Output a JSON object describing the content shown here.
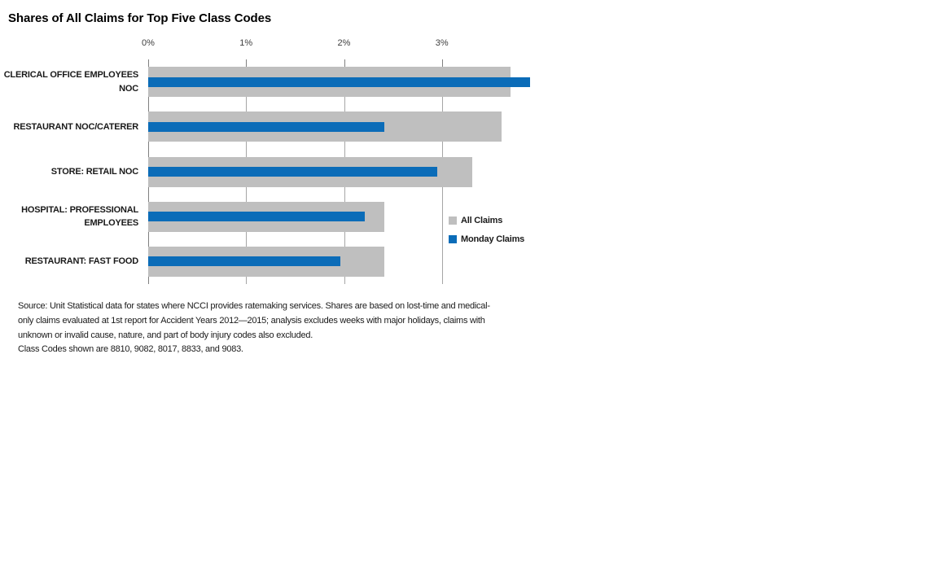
{
  "title": "Shares of All Claims for Top Five Class Codes",
  "chart_data": {
    "type": "bar",
    "orientation": "horizontal",
    "title": "Shares of All Claims for Top Five Class Codes",
    "categories": [
      "CLERICAL OFFICE EMPLOYEES NOC",
      "RESTAURANT NOC/CATERER",
      "STORE: RETAIL NOC",
      "HOSPITAL: PROFESSIONAL EMPLOYEES",
      "RESTAURANT: FAST FOOD"
    ],
    "category_label_lines": [
      [
        "CLERICAL OFFICE EMPLOYEES",
        "NOC"
      ],
      [
        "RESTAURANT NOC/CATERER"
      ],
      [
        "STORE: RETAIL NOC"
      ],
      [
        "HOSPITAL: PROFESSIONAL",
        "EMPLOYEES"
      ],
      [
        "RESTAURANT: FAST FOOD"
      ]
    ],
    "series": [
      {
        "name": "All Claims",
        "color": "#bfbfbf",
        "values": [
          3.7,
          3.61,
          3.31,
          2.41,
          2.41
        ]
      },
      {
        "name": "Monday Claims",
        "color": "#0b6cb8",
        "values": [
          3.9,
          2.41,
          2.95,
          2.21,
          1.96
        ]
      }
    ],
    "xlabel": "",
    "ylabel": "",
    "x_axis": {
      "tick_labels": [
        "0%",
        "1%",
        "2%",
        "3%"
      ],
      "tick_values": [
        0,
        1,
        2,
        3
      ],
      "max": 4,
      "unit": "percent"
    },
    "grid": true,
    "legend_position": "right-middle"
  },
  "legend": {
    "items": [
      {
        "label": "All Claims",
        "color": "#bfbfbf"
      },
      {
        "label": "Monday Claims",
        "color": "#0b6cb8"
      }
    ]
  },
  "footnote": {
    "lines": [
      "Source: Unit Statistical data for states where NCCI provides ratemaking services. Shares are based on lost-time and medical-",
      "only claims evaluated at 1st report for Accident Years 2012—2015; analysis excludes weeks with major holidays, claims with",
      "unknown or invalid cause, nature, and part of body injury codes also excluded.",
      "Class Codes shown are 8810, 9082, 8017, 8833, and 9083."
    ]
  },
  "colors": {
    "all_claims": "#bfbfbf",
    "monday_claims": "#0b6cb8",
    "gridline": "#a6a6a6",
    "axis_line": "#808080",
    "tick_text": "#404040",
    "text": "#1a1a1a"
  }
}
